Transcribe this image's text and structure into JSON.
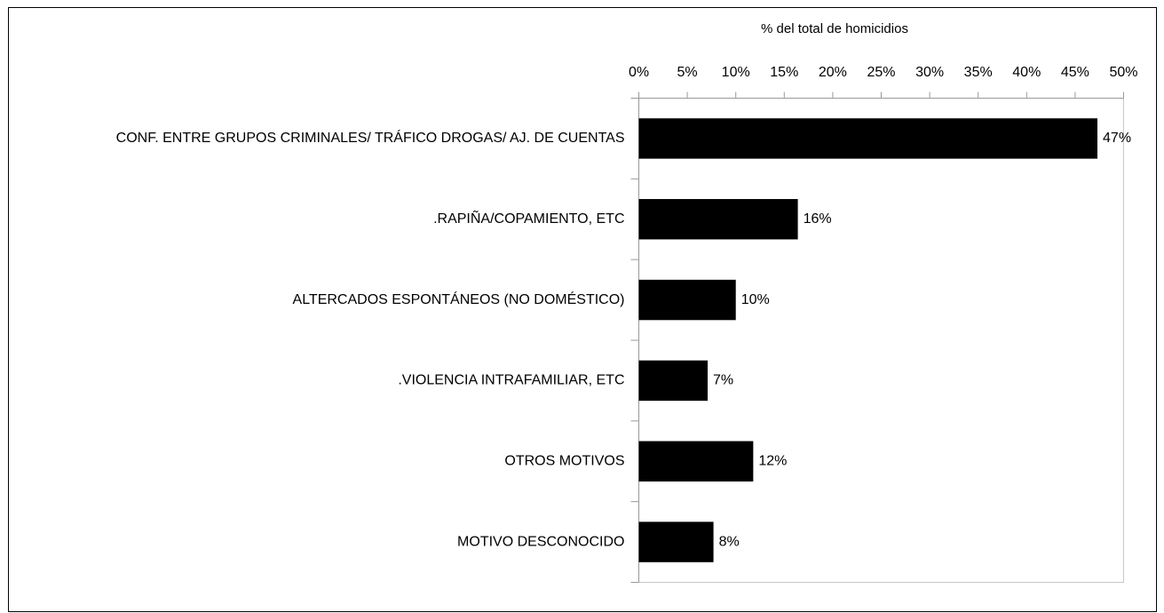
{
  "chart_data": {
    "type": "bar",
    "orientation": "horizontal",
    "x_axis_label": "% del total de homicidios",
    "categories": [
      "CONF. ENTRE GRUPOS CRIMINALES/ TRÁFICO DROGAS/ AJ. DE CUENTAS",
      ".RAPIÑA/COPAMIENTO, ETC",
      "ALTERCADOS ESPONTÁNEOS (NO DOMÉSTICO)",
      ".VIOLENCIA INTRAFAMILIAR, ETC",
      "OTROS MOTIVOS",
      "MOTIVO DESCONOCIDO"
    ],
    "values": [
      47.3,
      16.4,
      10,
      7.1,
      11.8,
      7.7
    ],
    "value_labels": [
      "47%",
      "16%",
      "10%",
      "7%",
      "12%",
      "8%"
    ],
    "color": "#000000",
    "xlim": [
      0,
      50
    ],
    "xticks": [
      {
        "value": 0,
        "label": "0%"
      },
      {
        "value": 5,
        "label": "5%"
      },
      {
        "value": 10,
        "label": "10%"
      },
      {
        "value": 15,
        "label": "15%"
      },
      {
        "value": 20,
        "label": "20%"
      },
      {
        "value": 25,
        "label": "25%"
      },
      {
        "value": 30,
        "label": "30%"
      },
      {
        "value": 35,
        "label": "35%"
      },
      {
        "value": 40,
        "label": "40%"
      },
      {
        "value": 45,
        "label": "45%"
      },
      {
        "value": 50,
        "label": "50%"
      }
    ],
    "grid": false
  }
}
